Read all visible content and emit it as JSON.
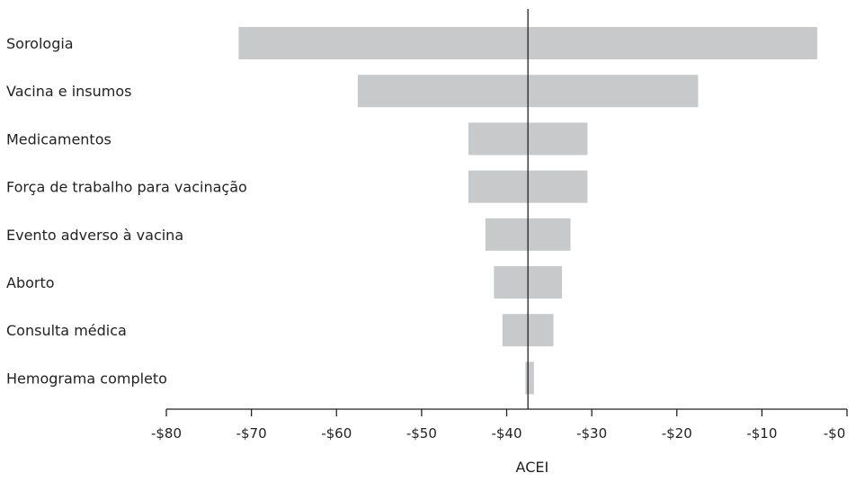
{
  "chart_data": {
    "type": "bar",
    "orientation": "horizontal",
    "subtype": "tornado",
    "xlabel": "ACEI",
    "ylabel": "",
    "title": "",
    "xlim": [
      -80,
      0
    ],
    "baseline": -37.5,
    "grid": false,
    "legend": "none",
    "bar_color": "#c8c9cb",
    "axis_color": "#222222",
    "tick_values": [
      -80,
      -70,
      -60,
      -50,
      -40,
      -30,
      -20,
      -10,
      0
    ],
    "tick_labels": [
      "-$80",
      "-$70",
      "-$60",
      "-$50",
      "-$40",
      "-$30",
      "-$20",
      "-$10",
      "-$0"
    ],
    "categories": [
      "Sorologia",
      "Vacina e insumos",
      "Medicamentos",
      "Força de trabalho para vacinação",
      "Evento adverso à vacina",
      "Aborto",
      "Consulta médica",
      "Hemograma completo"
    ],
    "low": [
      -71.5,
      -57.5,
      -44.5,
      -44.5,
      -42.5,
      -41.5,
      -40.5,
      -37.8
    ],
    "high": [
      -3.5,
      -17.5,
      -30.5,
      -30.5,
      -32.5,
      -33.5,
      -34.5,
      -36.8
    ]
  }
}
